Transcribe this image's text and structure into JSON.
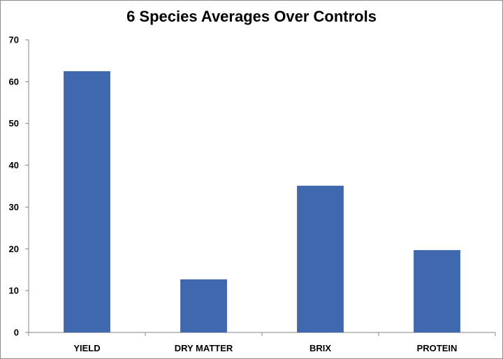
{
  "chart_data": {
    "type": "bar",
    "title": "6 Species Averages Over Controls",
    "categories": [
      "YIELD",
      "DRY MATTER",
      "BRIX",
      "PROTEIN"
    ],
    "values": [
      62.5,
      12.7,
      35.1,
      19.7
    ],
    "xlabel": "",
    "ylabel": "",
    "ylim": [
      0,
      70
    ],
    "yticks": [
      "0",
      "10",
      "20",
      "30",
      "40",
      "50",
      "60",
      "70"
    ],
    "grid": false,
    "legend": "none",
    "bar_color": "#3F68AF"
  }
}
